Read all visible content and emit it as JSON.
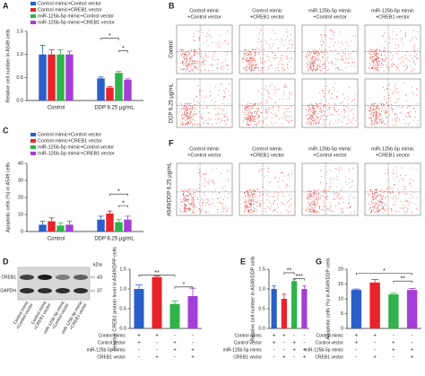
{
  "chart_data": [
    {
      "type": "bar",
      "panel": "A",
      "y_label": "Relative cell number in A549 cells",
      "categories": [
        "Control",
        "DDP  6.25 μg/mL"
      ],
      "series": [
        {
          "name": "Control mimic+Control vector",
          "color": "#2a5ec9",
          "values": [
            1.0,
            0.48
          ],
          "errors": [
            0.2,
            0.03
          ]
        },
        {
          "name": "Control mimic+CREB1 vector",
          "color": "#e8232a",
          "values": [
            1.0,
            0.28
          ],
          "errors": [
            0.1,
            0.02
          ]
        },
        {
          "name": "miR-125b-5p mimic+Control vector",
          "color": "#2fb34a",
          "values": [
            1.0,
            0.6
          ],
          "errors": [
            0.1,
            0.03
          ]
        },
        {
          "name": "miR-125b-5p mimic+CREB1 vector",
          "color": "#a33fd6",
          "values": [
            1.0,
            0.45
          ],
          "errors": [
            0.07,
            0.02
          ]
        }
      ],
      "ylim": [
        0,
        1.5
      ],
      "yticks": [
        {
          "value": 0,
          "label": "0.0"
        },
        {
          "value": 0.5,
          "label": "0.5"
        },
        {
          "value": 1,
          "label": "1.0"
        },
        {
          "value": 1.5,
          "label": "1.5"
        }
      ],
      "annotations": [
        "*",
        "*"
      ]
    },
    {
      "type": "bar",
      "panel": "C",
      "y_label": "Apoptotic cells (%) in A549 cells",
      "categories": [
        "Control",
        "DDP  6.25 μg/mL"
      ],
      "series": [
        {
          "name": "Control mimic+Control vector",
          "color": "#2a5ec9",
          "values": [
            4,
            7
          ],
          "errors": [
            2,
            2
          ]
        },
        {
          "name": "Control mimic+CREB1 vector",
          "color": "#e8232a",
          "values": [
            6,
            10.5
          ],
          "errors": [
            2,
            1.5
          ]
        },
        {
          "name": "miR-125b-5p mimic+Control vector",
          "color": "#2fb34a",
          "values": [
            3.5,
            5.5
          ],
          "errors": [
            1.5,
            1.5
          ]
        },
        {
          "name": "miR-125b-5p mimic+CREB1 vector",
          "color": "#a33fd6",
          "values": [
            4,
            7
          ],
          "errors": [
            2,
            2
          ]
        }
      ],
      "ylim": [
        0,
        40
      ],
      "yticks": [
        0,
        10,
        20,
        30,
        40
      ],
      "annotations": [
        "*",
        "*"
      ]
    },
    {
      "type": "bar",
      "panel": "D",
      "y_label": "Relative CREB1 protein level in A549/DPP cells",
      "values": [
        1.0,
        1.3,
        0.62,
        0.82
      ],
      "errors": [
        0.1,
        0.03,
        0.08,
        0.2
      ],
      "colors": [
        "#2a5ec9",
        "#e8232a",
        "#2fb34a",
        "#a33fd6"
      ],
      "ylim": [
        0,
        1.5
      ],
      "yticks": [
        {
          "value": 0,
          "label": "0.0"
        },
        {
          "value": 0.5,
          "label": "0.5"
        },
        {
          "value": 1,
          "label": "1.0"
        },
        {
          "value": 1.5,
          "label": "1.5"
        }
      ],
      "conditions": [
        {
          "label": "Control mimic",
          "marks": [
            "+",
            "+",
            "-",
            "-"
          ]
        },
        {
          "label": "Control vector",
          "marks": [
            "+",
            "-",
            "+",
            "-"
          ]
        },
        {
          "label": "miR-125b-5p mimic",
          "marks": [
            "-",
            "-",
            "+",
            "+"
          ]
        },
        {
          "label": "CREB1 vector",
          "marks": [
            "-",
            "+",
            "-",
            "+"
          ]
        }
      ],
      "annotations": [
        "**",
        "*"
      ]
    },
    {
      "type": "bar",
      "panel": "E",
      "y_label": "Relative cell number in A549/DDP cells",
      "values": [
        1.0,
        0.75,
        1.2,
        1.0
      ],
      "errors": [
        0.08,
        0.12,
        0.05,
        0.08
      ],
      "colors": [
        "#2a5ec9",
        "#e8232a",
        "#2fb34a",
        "#a33fd6"
      ],
      "ylim": [
        0,
        1.5
      ],
      "yticks": [
        {
          "value": 0,
          "label": "0.0"
        },
        {
          "value": 0.5,
          "label": "0.5"
        },
        {
          "value": 1,
          "label": "1.0"
        },
        {
          "value": 1.5,
          "label": "1.5"
        }
      ],
      "conditions": [
        {
          "label": "Control mimic",
          "marks": [
            "+",
            "+",
            "-",
            "-"
          ]
        },
        {
          "label": "Control vector",
          "marks": [
            "+",
            "-",
            "+",
            "-"
          ]
        },
        {
          "label": "miR-125b-5p mimic",
          "marks": [
            "-",
            "-",
            "+",
            "+"
          ]
        },
        {
          "label": "CREB1 vector",
          "marks": [
            "-",
            "+",
            "-",
            "+"
          ]
        }
      ],
      "annotations": [
        "**",
        "***"
      ]
    },
    {
      "type": "bar",
      "panel": "G",
      "y_label": "Apoptotic cells (%) in A549/DDP cells",
      "values": [
        13,
        15.5,
        11.5,
        13
      ],
      "errors": [
        0.3,
        1,
        0.4,
        0.5
      ],
      "colors": [
        "#2a5ec9",
        "#e8232a",
        "#2fb34a",
        "#a33fd6"
      ],
      "ylim": [
        0,
        20
      ],
      "yticks": [
        0,
        5,
        10,
        15,
        20
      ],
      "conditions": [
        {
          "label": "Control mimic",
          "marks": [
            "+",
            "+",
            "-",
            "-"
          ]
        },
        {
          "label": "Control vector",
          "marks": [
            "+",
            "-",
            "+",
            "-"
          ]
        },
        {
          "label": "miR-125b-5p mimic",
          "marks": [
            "-",
            "-",
            "+",
            "+"
          ]
        },
        {
          "label": "CREB1 vector",
          "marks": [
            "-",
            "+",
            "-",
            "+"
          ]
        }
      ],
      "annotations": [
        "*",
        "**"
      ]
    }
  ],
  "flow_cytometry": [
    {
      "panel": "B",
      "column_labels": [
        [
          "Control mimic",
          "+Control vector"
        ],
        [
          "Control mimic",
          "+CREB1 vector"
        ],
        [
          "miR-125b-5p mimic",
          "+Control vector"
        ],
        [
          "miR-125b-5p mimic",
          "+CREB1 vector"
        ]
      ],
      "row_labels": [
        "Control",
        "DDP  6.25 μg/mL"
      ]
    },
    {
      "panel": "F",
      "column_labels": [
        [
          "Control mimic",
          "+Control vector"
        ],
        [
          "Control mimic",
          "+CREB1 vector"
        ],
        [
          "miR-125b-5p mimic",
          "+Control vector"
        ],
        [
          "miR-125b-5p mimic",
          "+CREB1 vector"
        ]
      ],
      "row_labels": [
        "A549/DDP  6.25 μg/mL"
      ]
    }
  ],
  "western_blot": {
    "unit": "kDa",
    "bands": [
      {
        "name": "CREB1",
        "size": 43
      },
      {
        "name": "GAPDH",
        "size": 37
      }
    ],
    "lane_labels": [
      [
        "Control mimic",
        "+Control vector"
      ],
      [
        "Control mimic",
        "+CREB1 vector"
      ],
      [
        "miR-125b-5p mimic",
        "+Control vector"
      ],
      [
        "miR-125b-5p mimic",
        "+CREB1 vector"
      ]
    ]
  }
}
